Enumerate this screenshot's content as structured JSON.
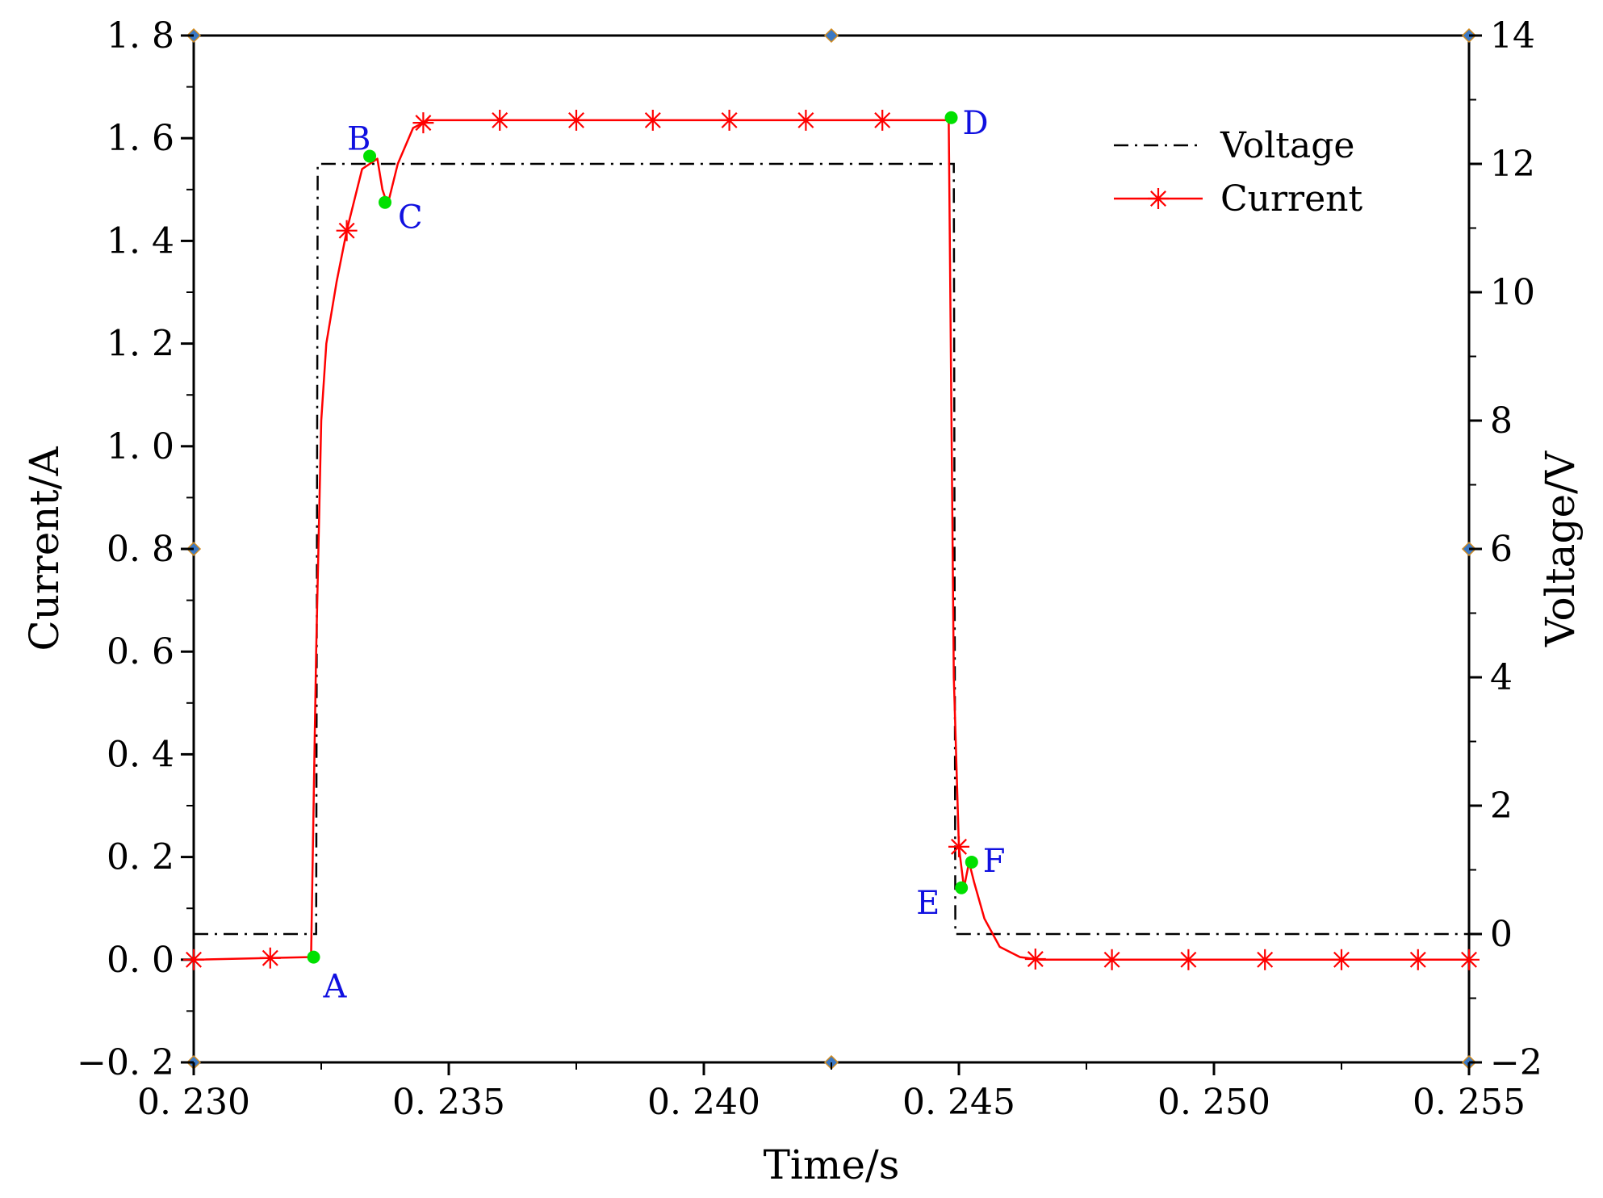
{
  "chart_data": {
    "type": "line",
    "xlabel": "Time/s",
    "ylabel": "Current/A",
    "y2label": "Voltage/V",
    "xlim": [
      0.23,
      0.255
    ],
    "ylim": [
      -0.2,
      1.8
    ],
    "y2lim": [
      -2,
      14
    ],
    "x_ticks": [
      "0. 230",
      "0. 235",
      "0. 240",
      "0. 245",
      "0. 250",
      "0. 255"
    ],
    "y_ticks": [
      "−0. 2",
      "0. 0",
      "0. 2",
      "0. 4",
      "0. 6",
      "0. 8",
      "1. 0",
      "1. 2",
      "1. 4",
      "1. 6",
      "1. 8"
    ],
    "y2_ticks": [
      "−2",
      "0",
      "2",
      "4",
      "6",
      "8",
      "10",
      "12",
      "14"
    ],
    "grid": false,
    "legend_position": "top-right",
    "colors": {
      "voltage": "#000000",
      "current": "#ff0000",
      "points": "#00e000",
      "point_labels": "#1010e0"
    },
    "series": [
      {
        "name": "Voltage",
        "axis": "right",
        "style": "dash-dot",
        "x": [
          0.23,
          0.2324,
          0.23243,
          0.2449,
          0.24493,
          0.255
        ],
        "y": [
          0.0,
          0.0,
          12.0,
          12.0,
          0.0,
          0.0
        ]
      },
      {
        "name": "Current",
        "axis": "left",
        "style": "solid-star",
        "x": [
          0.23,
          0.2323,
          0.2324,
          0.2325,
          0.2326,
          0.2328,
          0.233,
          0.2333,
          0.2336,
          0.2337,
          0.2338,
          0.234,
          0.2343,
          0.2346,
          0.235,
          0.236,
          0.24,
          0.2448,
          0.2449,
          0.245,
          0.2451,
          0.2452,
          0.2453,
          0.2455,
          0.2458,
          0.2462,
          0.2466,
          0.248,
          0.255
        ],
        "y": [
          0.0,
          0.005,
          0.6,
          1.05,
          1.2,
          1.32,
          1.42,
          1.54,
          1.56,
          1.5,
          1.47,
          1.55,
          1.62,
          1.635,
          1.635,
          1.635,
          1.635,
          1.635,
          0.55,
          0.22,
          0.14,
          0.19,
          0.15,
          0.08,
          0.025,
          0.005,
          0.0,
          0.0,
          0.0
        ]
      }
    ],
    "current_markers_x": [
      0.23,
      0.2315,
      0.233,
      0.2345,
      0.236,
      0.2375,
      0.239,
      0.2405,
      0.242,
      0.2435,
      0.245,
      0.2465,
      0.248,
      0.2495,
      0.251,
      0.2525,
      0.254,
      0.255
    ],
    "points": [
      {
        "label": "A",
        "x": 0.23235,
        "y": 0.005
      },
      {
        "label": "B",
        "x": 0.23345,
        "y": 1.565
      },
      {
        "label": "C",
        "x": 0.23375,
        "y": 1.475
      },
      {
        "label": "D",
        "x": 0.24485,
        "y": 1.64
      },
      {
        "label": "E",
        "x": 0.24505,
        "y": 0.14
      },
      {
        "label": "F",
        "x": 0.24525,
        "y": 0.19
      }
    ]
  }
}
